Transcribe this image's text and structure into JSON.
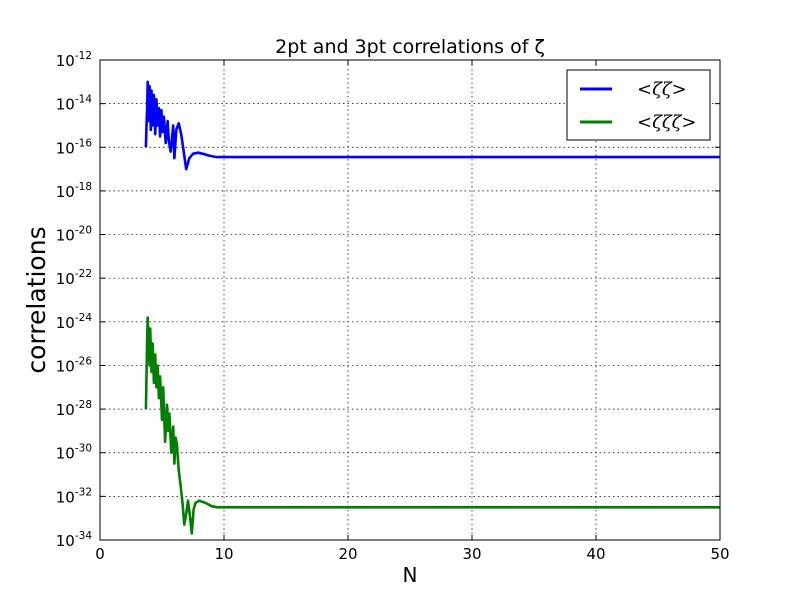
{
  "chart_data": {
    "type": "line",
    "title": "2pt and 3pt correlations of ζ",
    "xlabel": "N",
    "ylabel": "correlations",
    "xlim": [
      0,
      50
    ],
    "ylim_log10": [
      -34,
      -12
    ],
    "y_scale": "log",
    "x_ticks": [
      "0",
      "10",
      "20",
      "30",
      "40",
      "50"
    ],
    "y_tick_exponents": [
      "-12",
      "-14",
      "-16",
      "-18",
      "-20",
      "-22",
      "-24",
      "-26",
      "-28",
      "-30",
      "-32",
      "-34"
    ],
    "y_tick_base": "10",
    "grid": true,
    "legend_position": "top-right",
    "series": [
      {
        "name": "<ζζ>",
        "color": "#0000ff",
        "x": [
          3.7,
          3.75,
          3.8,
          3.85,
          3.9,
          3.95,
          4.0,
          4.1,
          4.15,
          4.25,
          4.35,
          4.45,
          4.55,
          4.65,
          4.75,
          4.85,
          4.95,
          5.05,
          5.15,
          5.3,
          5.45,
          5.55,
          5.7,
          5.9,
          6.0,
          6.15,
          6.35,
          6.55,
          6.75,
          6.95,
          7.2,
          7.5,
          7.9,
          8.3,
          8.8,
          9.4,
          10,
          12,
          20,
          30,
          40,
          50
        ],
        "log10_values": [
          -16.0,
          -15.0,
          -14.3,
          -13.0,
          -13.8,
          -14.8,
          -13.2,
          -15.2,
          -13.4,
          -15.0,
          -13.6,
          -15.4,
          -13.8,
          -15.0,
          -14.2,
          -15.5,
          -14.3,
          -15.3,
          -14.6,
          -15.8,
          -14.8,
          -15.7,
          -16.2,
          -15.0,
          -16.5,
          -15.2,
          -14.9,
          -15.4,
          -16.2,
          -17.0,
          -16.5,
          -16.3,
          -16.25,
          -16.3,
          -16.38,
          -16.45,
          -16.45,
          -16.45,
          -16.45,
          -16.45,
          -16.45,
          -16.45
        ]
      },
      {
        "name": "<ζζζ>",
        "color": "#008000",
        "x": [
          3.7,
          3.75,
          3.8,
          3.85,
          3.9,
          4.0,
          4.05,
          4.15,
          4.25,
          4.35,
          4.45,
          4.55,
          4.65,
          4.75,
          4.85,
          5.0,
          5.1,
          5.25,
          5.4,
          5.5,
          5.6,
          5.75,
          5.9,
          6.0,
          6.1,
          6.2,
          6.35,
          6.5,
          6.65,
          6.8,
          6.95,
          7.1,
          7.25,
          7.4,
          7.55,
          7.7,
          8.0,
          8.5,
          9.0,
          9.5,
          10,
          12,
          20,
          30,
          40,
          50
        ],
        "log10_values": [
          -28.0,
          -26.5,
          -25.0,
          -23.8,
          -24.8,
          -26.0,
          -24.3,
          -26.3,
          -25.0,
          -26.8,
          -25.5,
          -27.0,
          -26.0,
          -27.5,
          -26.5,
          -28.5,
          -27.0,
          -29.5,
          -27.8,
          -29.0,
          -28.2,
          -30.0,
          -28.8,
          -30.5,
          -29.3,
          -29.6,
          -30.8,
          -31.5,
          -32.3,
          -33.3,
          -32.8,
          -32.2,
          -32.9,
          -33.7,
          -32.6,
          -32.3,
          -32.2,
          -32.3,
          -32.45,
          -32.5,
          -32.5,
          -32.5,
          -32.5,
          -32.5,
          -32.5,
          -32.5
        ]
      }
    ]
  }
}
